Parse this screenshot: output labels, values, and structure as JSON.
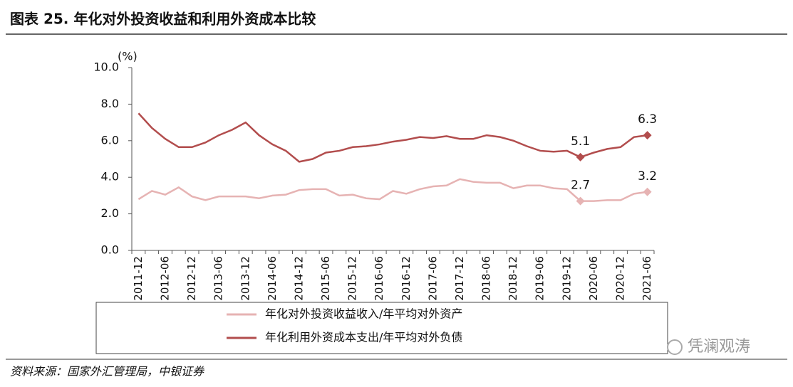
{
  "header": {
    "title": "图表 25. 年化对外投资收益和利用外资成本比较"
  },
  "chart_data": {
    "type": "line",
    "y_unit": "(%)",
    "categories": [
      "2011-12",
      null,
      "2012-06",
      null,
      "2012-12",
      null,
      "2013-06",
      null,
      "2013-12",
      null,
      "2014-06",
      null,
      "2014-12",
      null,
      "2015-06",
      null,
      "2015-12",
      null,
      "2016-06",
      null,
      "2016-12",
      null,
      "2017-06",
      null,
      "2017-12",
      null,
      "2018-06",
      null,
      "2018-12",
      null,
      "2019-06",
      null,
      "2019-12",
      null,
      "2020-06",
      null,
      "2020-12",
      null,
      "2021-06"
    ],
    "series": [
      {
        "name": "年化对外投资收益收入/年平均对外资产",
        "color": "#e6b3b3",
        "values": [
          2.8,
          3.25,
          3.05,
          3.45,
          2.95,
          2.75,
          2.95,
          2.95,
          2.95,
          2.85,
          3.0,
          3.05,
          3.3,
          3.35,
          3.35,
          3.0,
          3.05,
          2.85,
          2.8,
          3.25,
          3.1,
          3.35,
          3.5,
          3.55,
          3.9,
          3.75,
          3.7,
          3.7,
          3.4,
          3.55,
          3.55,
          3.4,
          3.35,
          2.7,
          2.7,
          2.75,
          2.75,
          3.1,
          3.2
        ],
        "value_labels": [
          null,
          null,
          null,
          null,
          null,
          null,
          null,
          null,
          null,
          null,
          null,
          null,
          null,
          null,
          null,
          null,
          null,
          null,
          null,
          null,
          null,
          null,
          null,
          null,
          null,
          null,
          null,
          null,
          null,
          null,
          null,
          null,
          null,
          "2.7",
          null,
          null,
          null,
          null,
          "3.2"
        ]
      },
      {
        "name": "年化利用外资成本支出/年平均对外负债",
        "color": "#b24d4d",
        "values": [
          7.5,
          6.7,
          6.1,
          5.65,
          5.65,
          5.9,
          6.3,
          6.6,
          7.0,
          6.3,
          5.8,
          5.45,
          4.85,
          5.0,
          5.35,
          5.45,
          5.65,
          5.7,
          5.8,
          5.95,
          6.05,
          6.2,
          6.15,
          6.25,
          6.1,
          6.1,
          6.3,
          6.2,
          6.0,
          5.7,
          5.45,
          5.4,
          5.45,
          5.1,
          5.35,
          5.55,
          5.65,
          6.2,
          6.3
        ],
        "value_labels": [
          null,
          null,
          null,
          null,
          null,
          null,
          null,
          null,
          null,
          null,
          null,
          null,
          null,
          null,
          null,
          null,
          null,
          null,
          null,
          null,
          null,
          null,
          null,
          null,
          null,
          null,
          null,
          null,
          null,
          null,
          null,
          null,
          null,
          "5.1",
          null,
          null,
          null,
          null,
          "6.3"
        ]
      }
    ],
    "ylim": [
      0,
      10
    ],
    "yticks": [
      {
        "value": 0,
        "label": "0.0"
      },
      {
        "value": 2,
        "label": "2.0"
      },
      {
        "value": 4,
        "label": "4.0"
      },
      {
        "value": 6,
        "label": "6.0"
      },
      {
        "value": 8,
        "label": "8.0"
      },
      {
        "value": 10,
        "label": "10.0"
      }
    ],
    "grid": false
  },
  "footer": {
    "source": "资料来源：国家外汇管理局，中银证券",
    "watermark": "凭澜观涛"
  }
}
